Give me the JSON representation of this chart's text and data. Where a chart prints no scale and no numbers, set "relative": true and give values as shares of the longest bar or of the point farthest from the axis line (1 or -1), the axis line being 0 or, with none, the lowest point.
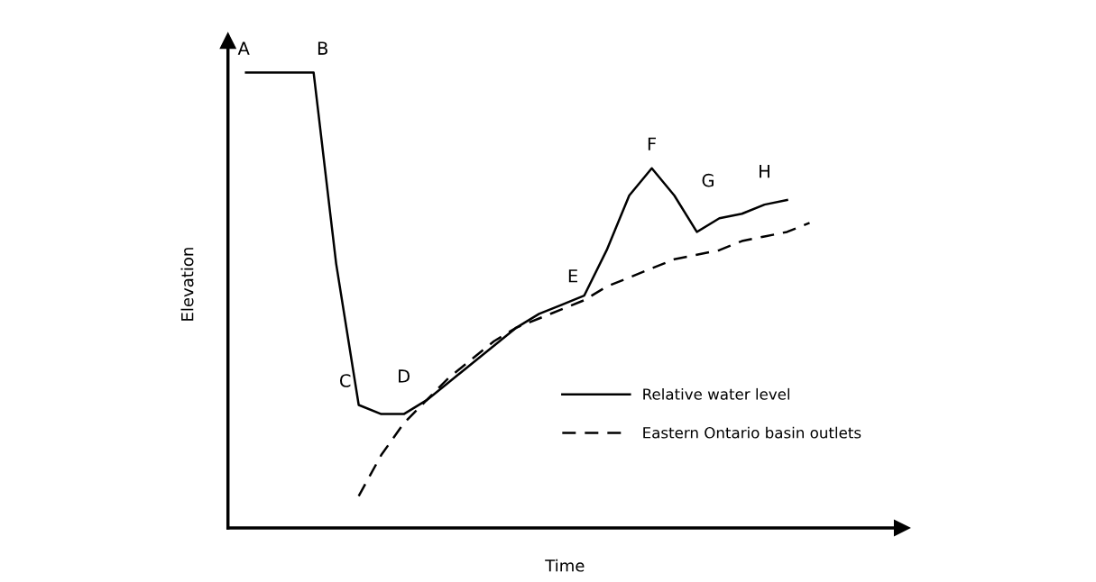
{
  "chart_data": {
    "type": "line",
    "relative": true,
    "xlabel": "Time",
    "ylabel": "Elevation",
    "categories": [
      null,
      null,
      null,
      null,
      null,
      null,
      null,
      null,
      null,
      null,
      null,
      null,
      null,
      null,
      null,
      null,
      null,
      null,
      null,
      null,
      null,
      null,
      null,
      null,
      null,
      null
    ],
    "series": [
      {
        "name": "Relative water level",
        "color": "#000000",
        "line_style": "solid",
        "values": [
          1.0,
          1.0,
          1.0,
          1.0,
          0.58,
          0.27,
          0.25,
          0.25,
          0.28,
          0.32,
          0.36,
          0.4,
          0.44,
          0.47,
          0.49,
          0.51,
          0.61,
          0.73,
          0.79,
          0.73,
          0.65,
          0.68,
          0.69,
          0.71,
          0.72,
          null
        ]
      },
      {
        "name": "Eastern Ontario basin outlets",
        "color": "#000000",
        "line_style": "dashed",
        "values": [
          null,
          null,
          null,
          null,
          null,
          0.07,
          0.16,
          0.23,
          0.28,
          0.33,
          0.37,
          0.41,
          0.44,
          0.46,
          0.48,
          0.5,
          0.53,
          0.55,
          0.57,
          0.59,
          0.6,
          0.61,
          0.63,
          0.64,
          0.65,
          0.67
        ]
      }
    ],
    "annotations": [
      "A",
      "B",
      "C",
      "D",
      "E",
      "F",
      "G",
      "H"
    ],
    "legend": "bottom right",
    "marker": "none"
  }
}
